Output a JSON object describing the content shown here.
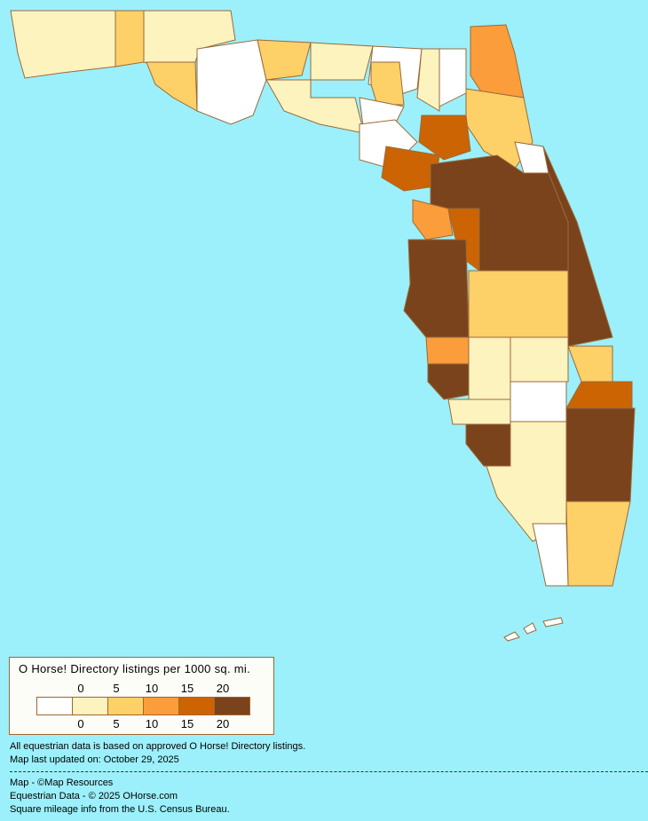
{
  "map": {
    "ocean_color": "#9cf0fb",
    "region": "Florida counties",
    "legend": {
      "title": "O Horse! Directory listings per 1000 sq. mi.",
      "tick_labels": [
        "0",
        "5",
        "10",
        "15",
        "20"
      ],
      "bins": [
        {
          "range": "0",
          "color": "#ffffff"
        },
        {
          "range": "0-5",
          "color": "#fdf3bf"
        },
        {
          "range": "5-10",
          "color": "#fdd068"
        },
        {
          "range": "10-15",
          "color": "#fb9d3a"
        },
        {
          "range": "15-20",
          "color": "#cc6404"
        },
        {
          "range": "20+",
          "color": "#7a431c"
        }
      ]
    }
  },
  "notes": {
    "data_basis": "All equestrian data is based on approved O Horse! Directory listings.",
    "updated": "Map last updated on: October 29, 2025"
  },
  "credits": {
    "map": "Map - ©Map Resources",
    "data": "Equestrian Data - © 2025 OHorse.com",
    "census": "Square mileage info from the U.S. Census Bureau."
  }
}
